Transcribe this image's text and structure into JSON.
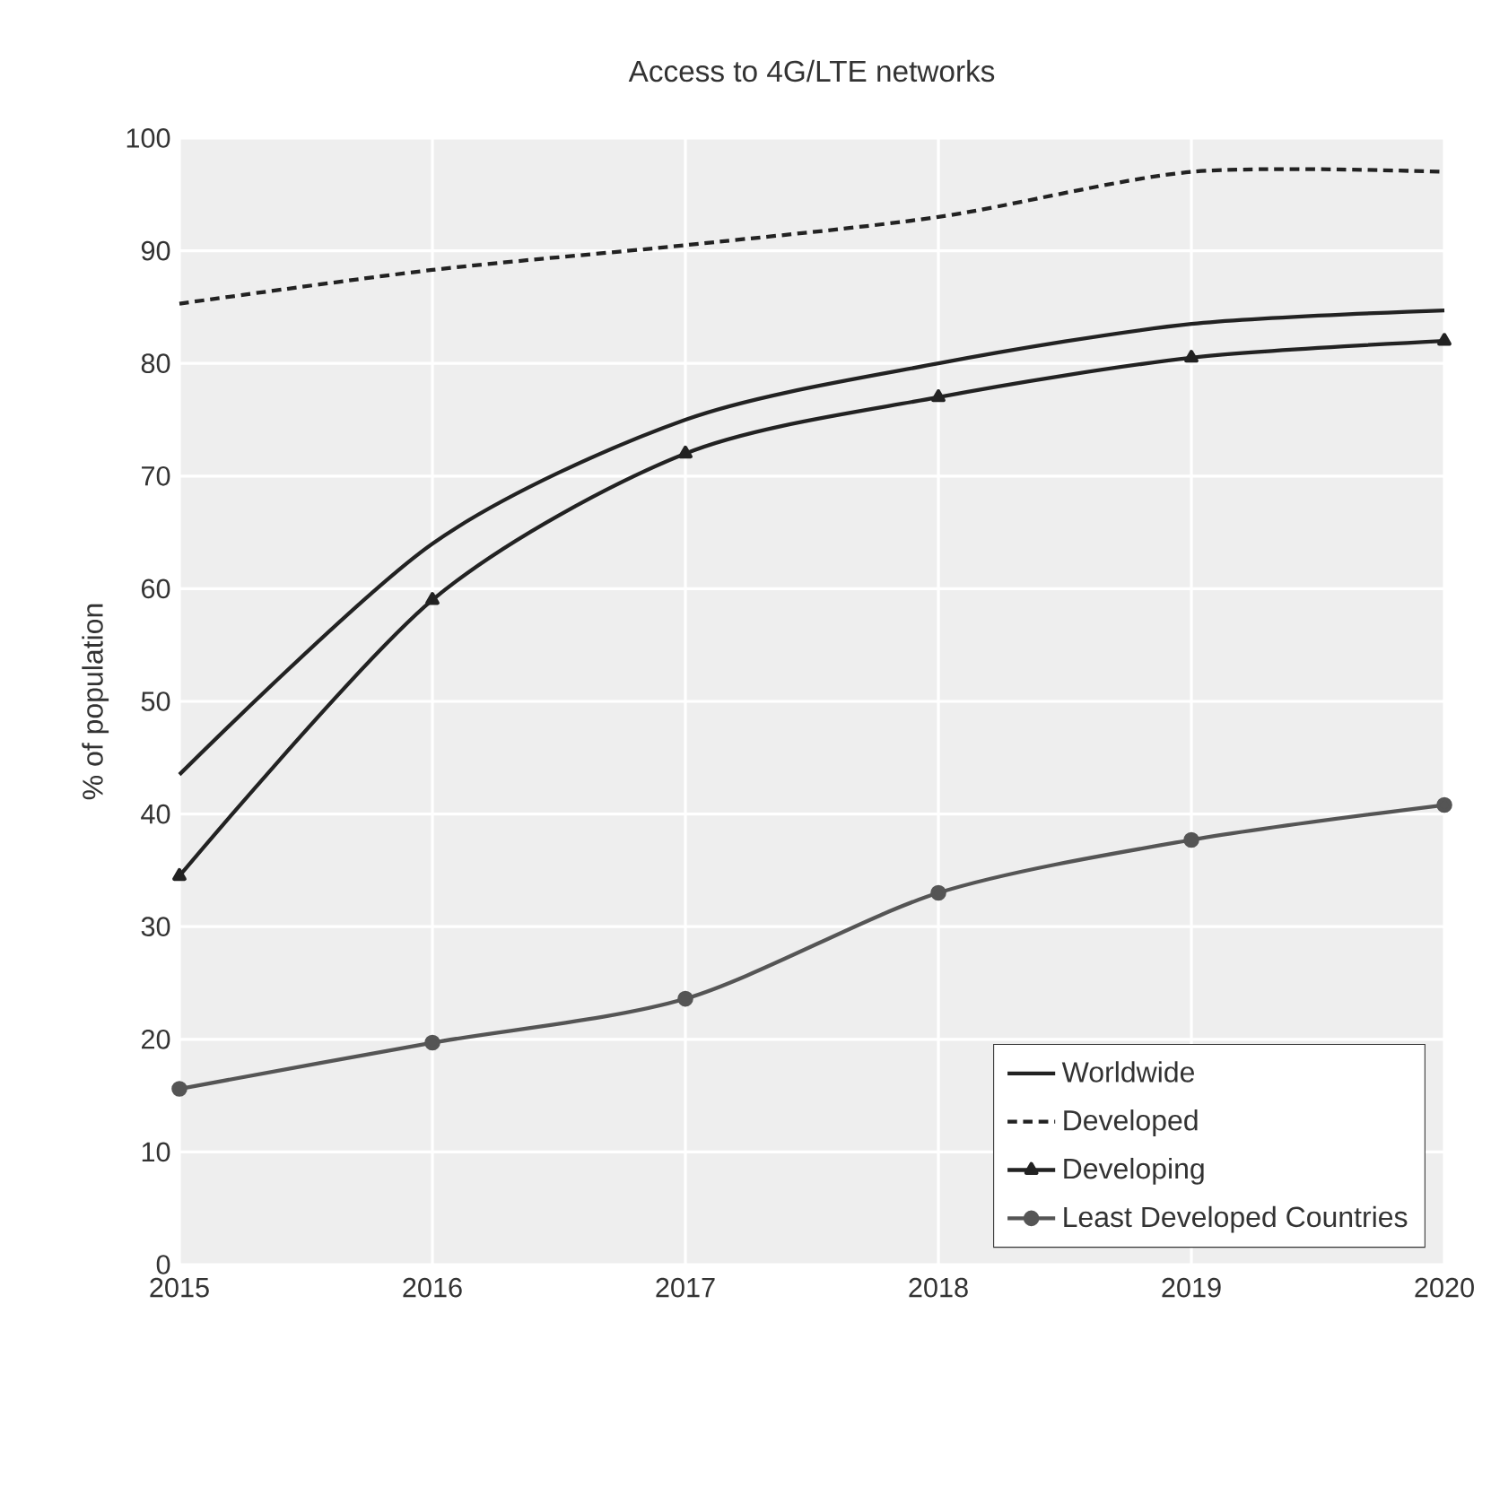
{
  "chart_data": {
    "type": "line",
    "title": "Access to 4G/LTE networks",
    "ylabel": "% of population",
    "x": [
      2015,
      2016,
      2017,
      2018,
      2019,
      2020
    ],
    "series": [
      {
        "name": "Worldwide",
        "color": "#222222",
        "values": [
          43.5,
          64,
          75,
          80,
          83.5,
          84.7
        ],
        "marker": "none",
        "line_style": "solid"
      },
      {
        "name": "Developed",
        "color": "#222222",
        "values": [
          85.3,
          88.3,
          90.5,
          93,
          97,
          97
        ],
        "marker": "none",
        "line_style": "dashed"
      },
      {
        "name": "Developing",
        "color": "#222222",
        "values": [
          34.5,
          59,
          72,
          77,
          80.5,
          82
        ],
        "marker": "triangle",
        "line_style": "solid"
      },
      {
        "name": "Least Developed Countries",
        "color": "#555555",
        "values": [
          15.6,
          19.7,
          23.6,
          33,
          37.7,
          40.8
        ],
        "marker": "circle",
        "line_style": "solid"
      }
    ],
    "xlim": [
      2015,
      2020
    ],
    "xticks": [
      2015,
      2016,
      2017,
      2018,
      2019,
      2020
    ],
    "ylim": [
      0,
      100
    ],
    "yticks": [
      0,
      10,
      20,
      30,
      40,
      50,
      60,
      70,
      80,
      90,
      100
    ],
    "grid": true,
    "legend": "bottom right"
  }
}
